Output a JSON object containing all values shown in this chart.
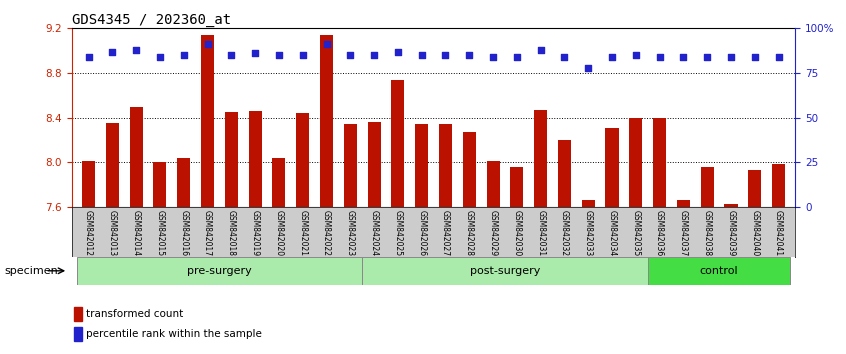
{
  "title": "GDS4345 / 202360_at",
  "categories": [
    "GSM842012",
    "GSM842013",
    "GSM842014",
    "GSM842015",
    "GSM842016",
    "GSM842017",
    "GSM842018",
    "GSM842019",
    "GSM842020",
    "GSM842021",
    "GSM842022",
    "GSM842023",
    "GSM842024",
    "GSM842025",
    "GSM842026",
    "GSM842027",
    "GSM842028",
    "GSM842029",
    "GSM842030",
    "GSM842031",
    "GSM842032",
    "GSM842033",
    "GSM842034",
    "GSM842035",
    "GSM842036",
    "GSM842037",
    "GSM842038",
    "GSM842039",
    "GSM842040",
    "GSM842041"
  ],
  "bar_values": [
    8.01,
    8.35,
    8.5,
    8.0,
    8.04,
    9.14,
    8.45,
    8.46,
    8.04,
    8.44,
    9.14,
    8.34,
    8.36,
    8.74,
    8.34,
    8.34,
    8.27,
    8.01,
    7.96,
    8.47,
    8.2,
    7.66,
    8.31,
    8.4,
    8.4,
    7.66,
    7.96,
    7.63,
    7.93,
    7.99
  ],
  "percentile_values": [
    84,
    87,
    88,
    84,
    85,
    91,
    85,
    86,
    85,
    85,
    91,
    85,
    85,
    87,
    85,
    85,
    85,
    84,
    84,
    88,
    84,
    78,
    84,
    85,
    84,
    84,
    84,
    84,
    84,
    84
  ],
  "ylim_left": [
    7.6,
    9.2
  ],
  "ylim_right": [
    0,
    100
  ],
  "yticks_left": [
    7.6,
    8.0,
    8.4,
    8.8,
    9.2
  ],
  "yticks_right": [
    0,
    25,
    50,
    75,
    100
  ],
  "ytick_labels_right": [
    "0",
    "25",
    "50",
    "75",
    "100%"
  ],
  "bar_color": "#bb1100",
  "dot_color": "#2222cc",
  "bar_baseline": 7.6,
  "group_ranges": [
    {
      "start": 0,
      "end": 11,
      "label": "pre-surgery",
      "color": "#aaeaaa"
    },
    {
      "start": 12,
      "end": 23,
      "label": "post-surgery",
      "color": "#aaeaaa"
    },
    {
      "start": 24,
      "end": 29,
      "label": "control",
      "color": "#44dd44"
    }
  ],
  "specimen_label": "specimen",
  "legend_items": [
    {
      "color": "#bb1100",
      "label": "transformed count"
    },
    {
      "color": "#2222cc",
      "label": "percentile rank within the sample"
    }
  ],
  "tick_bg_color": "#cccccc",
  "title_fontsize": 10,
  "axis_color_left": "#cc2200",
  "axis_color_right": "#2222cc",
  "fig_width": 8.46,
  "fig_height": 3.54,
  "dpi": 100
}
